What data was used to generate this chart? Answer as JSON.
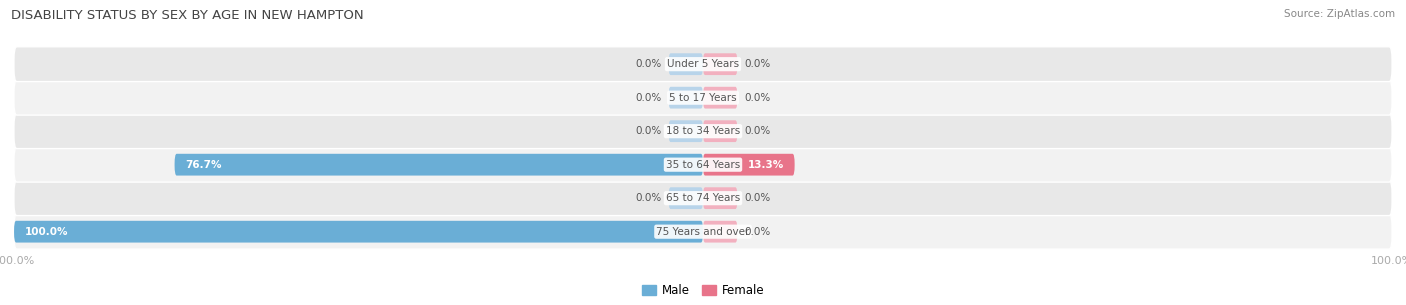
{
  "title": "DISABILITY STATUS BY SEX BY AGE IN NEW HAMPTON",
  "source": "Source: ZipAtlas.com",
  "categories": [
    "Under 5 Years",
    "5 to 17 Years",
    "18 to 34 Years",
    "35 to 64 Years",
    "65 to 74 Years",
    "75 Years and over"
  ],
  "male_values": [
    0.0,
    0.0,
    0.0,
    76.7,
    0.0,
    100.0
  ],
  "female_values": [
    0.0,
    0.0,
    0.0,
    13.3,
    0.0,
    0.0
  ],
  "male_color": "#6aaed6",
  "female_color": "#e8748a",
  "male_color_light": "#b8d4ea",
  "female_color_light": "#f2b0bf",
  "row_bg_even": "#f2f2f2",
  "row_bg_odd": "#e8e8e8",
  "label_color": "#555555",
  "title_color": "#444444",
  "axis_label_color": "#aaaaaa",
  "value_label_outside_color": "#555555",
  "max_value": 100.0,
  "min_bar_display": 5.0,
  "figsize": [
    14.06,
    3.05
  ],
  "dpi": 100
}
